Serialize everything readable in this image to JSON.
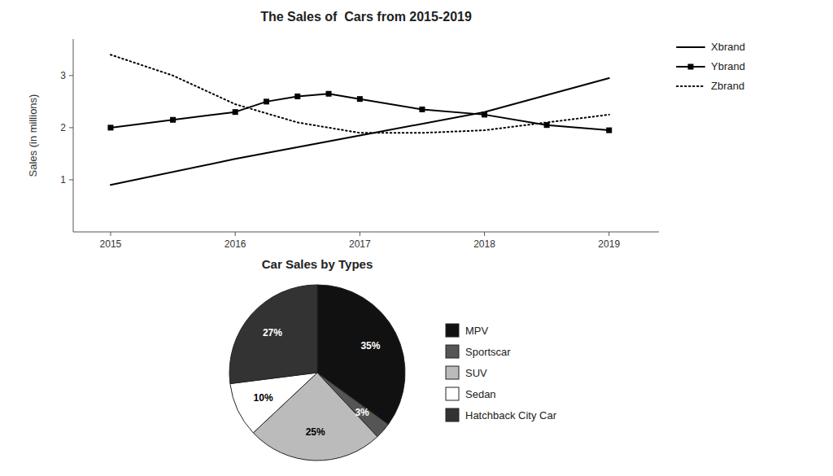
{
  "chart_data": [
    {
      "type": "line",
      "title": "The Sales of  Cars from 2015-2019",
      "y_label": "Sales (in millions)",
      "series": [
        {
          "name": "Xbrand",
          "color": "black",
          "line_style": "solid",
          "x": [
            2015,
            2016,
            2017,
            2018,
            2019
          ],
          "values": [
            0.9,
            1.4,
            1.85,
            2.3,
            2.95
          ]
        },
        {
          "name": "Ybrand",
          "color": "black",
          "line_style": "solid",
          "marker": "square",
          "x": [
            2015,
            2015.5,
            2016,
            2016.25,
            2016.5,
            2016.75,
            2017,
            2017.5,
            2018,
            2018.5,
            2019
          ],
          "values": [
            2.0,
            2.15,
            2.3,
            2.5,
            2.6,
            2.65,
            2.55,
            2.35,
            2.25,
            2.05,
            1.95
          ]
        },
        {
          "name": "Zbrand",
          "color": "black",
          "line_style": "dotted",
          "x": [
            2015,
            2015.5,
            2016,
            2016.5,
            2017,
            2017.5,
            2018,
            2018.5,
            2019
          ],
          "values": [
            3.4,
            3.0,
            2.45,
            2.1,
            1.9,
            1.9,
            1.95,
            2.1,
            2.25
          ]
        }
      ],
      "xlim": [
        2014.7,
        2019.4
      ],
      "ylim": [
        0,
        3.7
      ],
      "xticks": [
        2015,
        2016,
        2017,
        2018,
        2019
      ],
      "yticks": [
        1,
        2,
        3
      ],
      "grid": false,
      "legend": "upper right"
    },
    {
      "type": "pie",
      "title": "Car Sales by Types",
      "categories": [
        "MPV",
        "Sportscar",
        "SUV",
        "Sedan",
        "Hatchback City Car"
      ],
      "values": [
        35,
        3,
        25,
        10,
        27
      ],
      "value_labels": [
        "35%",
        "3%",
        "25%",
        "10%",
        "27%"
      ],
      "data_labels": true,
      "colors": [
        "#111111",
        "#555555",
        "#bbbbbb",
        "#ffffff",
        "#333333"
      ],
      "legend": "right"
    }
  ]
}
